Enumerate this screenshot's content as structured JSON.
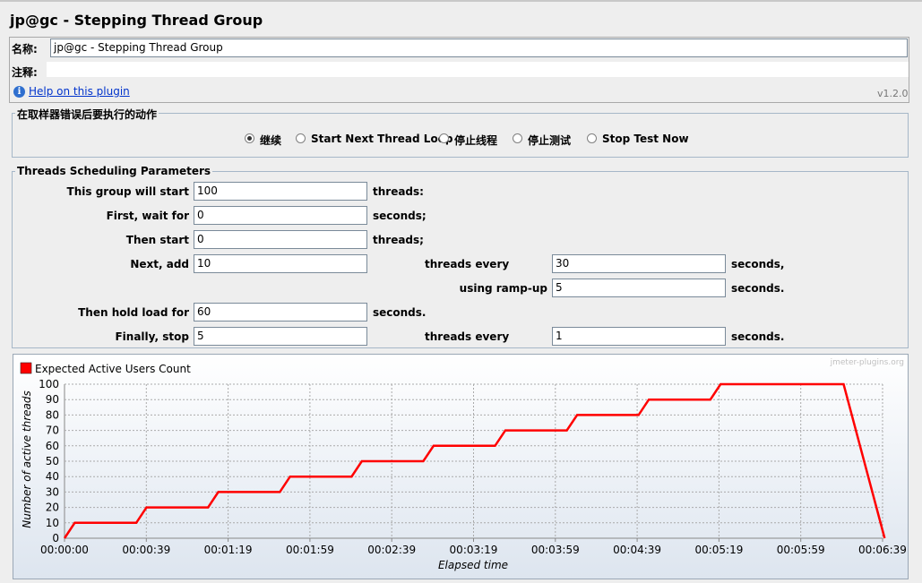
{
  "window": {
    "title": "jp@gc - Stepping Thread Group"
  },
  "name_panel": {
    "name_label": "名称:",
    "name_value": "jp@gc - Stepping Thread Group",
    "comment_label": "注释:",
    "comment_value": "",
    "help_link": "Help on this plugin",
    "version": "v1.2.0"
  },
  "error_action": {
    "legend": "在取样器错误后要执行的动作",
    "options": [
      {
        "label": "继续",
        "selected": true
      },
      {
        "label": "Start Next Thread Loop",
        "selected": false
      },
      {
        "label": "停止线程",
        "selected": false
      },
      {
        "label": "停止测试",
        "selected": false
      },
      {
        "label": "Stop Test Now",
        "selected": false
      }
    ]
  },
  "scheduling": {
    "legend": "Threads Scheduling Parameters",
    "start_label": "This group will start",
    "start_value": "100",
    "start_unit": "threads:",
    "wait_label": "First, wait for",
    "wait_value": "0",
    "wait_unit": "seconds;",
    "then_start_label": "Then start",
    "then_start_value": "0",
    "then_start_unit": "threads;",
    "next_add_label": "Next, add",
    "next_add_value": "10",
    "threads_every_label": "threads every",
    "threads_every_value": "30",
    "threads_every_unit": "seconds,",
    "rampup_label": "using ramp-up",
    "rampup_value": "5",
    "rampup_unit": "seconds.",
    "hold_label": "Then hold load for",
    "hold_value": "60",
    "hold_unit": "seconds.",
    "stop_label": "Finally, stop",
    "stop_value": "5",
    "stop_threads_every_label": "threads every",
    "stop_every_value": "1",
    "stop_every_unit": "seconds."
  },
  "chart_data": {
    "type": "line",
    "legend_entry": "Expected Active Users Count",
    "watermark": "jmeter-plugins.org",
    "xlabel": "Elapsed time",
    "ylabel": "Number of active threads",
    "ylim": [
      0,
      100
    ],
    "y_ticks": [
      "0",
      "10",
      "20",
      "30",
      "40",
      "50",
      "60",
      "70",
      "80",
      "90",
      "100"
    ],
    "xlim_seconds": [
      0,
      399
    ],
    "x_ticks": [
      "00:00:00",
      "00:00:39",
      "00:01:19",
      "00:01:59",
      "00:02:39",
      "00:03:19",
      "00:03:59",
      "00:04:39",
      "00:05:19",
      "00:05:59",
      "00:06:39"
    ],
    "grid": true,
    "line_color": "#ff0000",
    "series": [
      {
        "x": [
          0,
          5,
          35,
          40,
          70,
          75,
          105,
          110,
          140,
          145,
          175,
          180,
          210,
          215,
          245,
          250,
          280,
          285,
          315,
          320,
          380,
          400
        ],
        "y": [
          0,
          10,
          10,
          20,
          20,
          30,
          30,
          40,
          40,
          50,
          50,
          60,
          60,
          70,
          70,
          80,
          80,
          90,
          90,
          100,
          100,
          0
        ]
      }
    ]
  }
}
